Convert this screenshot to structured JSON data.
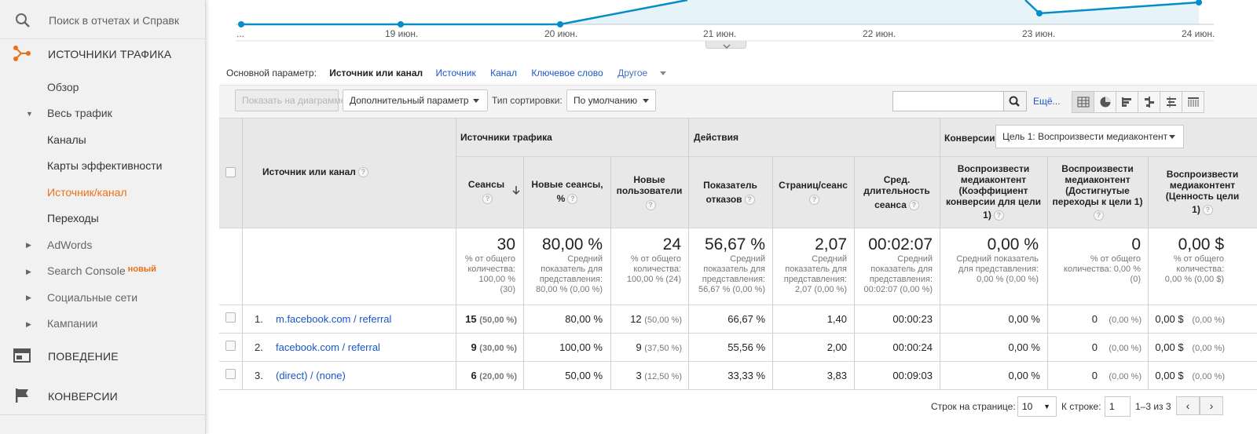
{
  "sidebar": {
    "search_placeholder": "Поиск в отчетах и Справк",
    "section_traffic": "ИСТОЧНИКИ ТРАФИКА",
    "overview": "Обзор",
    "all_traffic": "Весь трафик",
    "channels": "Каналы",
    "treemaps": "Карты эффективности",
    "source_medium": "Источник/канал",
    "referrals": "Переходы",
    "adwords": "AdWords",
    "search_console": "Search Console",
    "search_console_badge": "новый",
    "social": "Социальные сети",
    "campaigns": "Кампании",
    "section_behavior": "ПОВЕДЕНИЕ",
    "section_conversions": "КОНВЕРСИИ"
  },
  "chart": {
    "x_labels": [
      "...",
      "19 июн.",
      "20 июн.",
      "21 июн.",
      "22 июн.",
      "23 июн.",
      "24 июн."
    ],
    "accent": "#058dc7",
    "fill": "#e6f4fa"
  },
  "primary_dimension": {
    "label": "Основной параметр:",
    "current": "Источник или канал",
    "options": [
      "Источник",
      "Канал",
      "Ключевое слово"
    ],
    "other": "Другое"
  },
  "toolbar": {
    "plot_rows": "Показать на диаграмме",
    "secondary_dimension": "Дополнительный параметр",
    "sort_type_label": "Тип сортировки:",
    "sort_type_value": "По умолчанию",
    "more": "Ещё..."
  },
  "table": {
    "dim_header": "Источник или канал",
    "group_acquisition": "Источники трафика",
    "group_behavior": "Действия",
    "group_conversions": "Конверсии",
    "conv_goal": "Цель 1: Воспроизвести медиаконтент",
    "columns": {
      "sessions": "Сеансы",
      "new_sessions_1": "Новые сеансы,",
      "new_sessions_2": "%",
      "new_users_1": "Новые",
      "new_users_2": "пользователи",
      "bounce_1": "Показатель",
      "bounce_2": "отказов",
      "pages": "Страниц/сеанс",
      "dur_1": "Сред.",
      "dur_2": "длительность",
      "dur_3": "сеанса",
      "conv_rate_1": "Воспроизвести",
      "conv_rate_2": "медиаконтент",
      "conv_rate_3": "(Коэффициент",
      "conv_rate_4": "конверсии для цели",
      "conv_rate_5": "1)",
      "completions_1": "Воспроизвести",
      "completions_2": "медиаконтент",
      "completions_3": "(Достигнутые",
      "completions_4": "переходы к цели 1)",
      "value_1": "Воспроизвести",
      "value_2": "медиаконтент",
      "value_3": "(Ценность цели",
      "value_4": "1)"
    },
    "totals": {
      "sessions": "30",
      "sessions_sub": [
        "% от общего",
        "количества:",
        "100,00 %",
        "(30)"
      ],
      "new_sessions": "80,00 %",
      "new_sessions_sub": [
        "Средний",
        "показатель для",
        "представления:",
        "80,00 % (0,00 %)"
      ],
      "new_users": "24",
      "new_users_sub": [
        "% от общего",
        "количества:",
        "100,00 % (24)"
      ],
      "bounce": "56,67 %",
      "bounce_sub": [
        "Средний",
        "показатель для",
        "представления:",
        "56,67 % (0,00 %)"
      ],
      "pages": "2,07",
      "pages_sub": [
        "Средний",
        "показатель для",
        "представления:",
        "2,07 (0,00 %)"
      ],
      "duration": "00:02:07",
      "duration_sub": [
        "Средний",
        "показатель для",
        "представления:",
        "00:02:07 (0,00 %)"
      ],
      "conv_rate": "0,00 %",
      "conv_rate_sub": [
        "Средний показатель",
        "для представления:",
        "0,00 % (0,00 %)"
      ],
      "completions": "0",
      "completions_sub": [
        "% от общего",
        "количества: 0,00 %",
        "(0)"
      ],
      "value": "0,00 $",
      "value_sub": [
        "% от общего",
        "количества:",
        "0,00 % (0,00 $)"
      ]
    },
    "rows": [
      {
        "num": "1.",
        "name": "m.facebook.com / referral",
        "sessions": "15",
        "sessions_pct": "(50,00 %)",
        "new_sessions": "80,00 %",
        "new_users": "12",
        "new_users_pct": "(50,00 %)",
        "bounce": "66,67 %",
        "pages": "1,40",
        "duration": "00:00:23",
        "conv_rate": "0,00 %",
        "completions": "0",
        "completions_pct": "(0,00 %)",
        "value": "0,00 $",
        "value_pct": "(0,00 %)"
      },
      {
        "num": "2.",
        "name": "facebook.com / referral",
        "sessions": "9",
        "sessions_pct": "(30,00 %)",
        "new_sessions": "100,00 %",
        "new_users": "9",
        "new_users_pct": "(37,50 %)",
        "bounce": "55,56 %",
        "pages": "2,00",
        "duration": "00:00:24",
        "conv_rate": "0,00 %",
        "completions": "0",
        "completions_pct": "(0,00 %)",
        "value": "0,00 $",
        "value_pct": "(0,00 %)"
      },
      {
        "num": "3.",
        "name": "(direct) / (none)",
        "sessions": "6",
        "sessions_pct": "(20,00 %)",
        "new_sessions": "50,00 %",
        "new_users": "3",
        "new_users_pct": "(12,50 %)",
        "bounce": "33,33 %",
        "pages": "3,83",
        "duration": "00:09:03",
        "conv_rate": "0,00 %",
        "completions": "0",
        "completions_pct": "(0,00 %)",
        "value": "0,00 $",
        "value_pct": "(0,00 %)"
      }
    ]
  },
  "pagination": {
    "rows_label": "Строк на странице:",
    "rows_value": "10",
    "goto_label": "К строке:",
    "goto_value": "1",
    "range": "1–3 из 3"
  }
}
